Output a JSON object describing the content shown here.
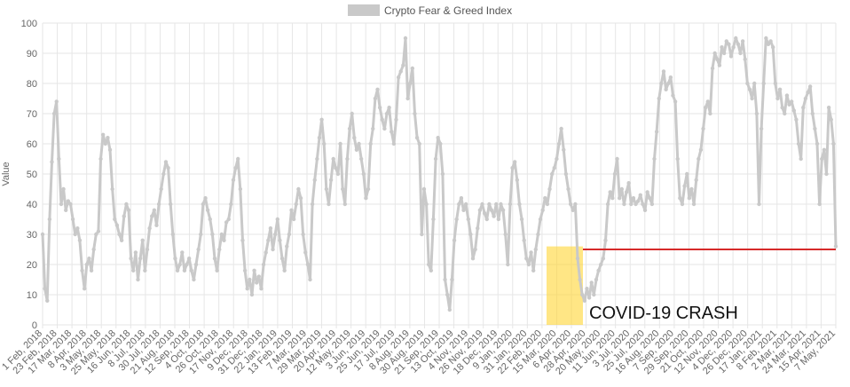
{
  "chart_data": {
    "type": "line",
    "legend": {
      "label": "Crypto Fear & Greed Index",
      "placement": "top-center"
    },
    "ylabel": "Value",
    "ylim": [
      0,
      100
    ],
    "yticks": [
      0,
      10,
      20,
      30,
      40,
      50,
      60,
      70,
      80,
      90,
      100
    ],
    "grid": true,
    "x_tick_labels": [
      "1 Feb, 2018",
      "23 Feb, 2018",
      "17 Mar, 2018",
      "8 Apr, 2018",
      "3 May, 2018",
      "25 May, 2018",
      "16 Jun, 2018",
      "8 Jul, 2018",
      "30 Jul, 2018",
      "21 Aug, 2018",
      "12 Sep, 2018",
      "4 Oct, 2018",
      "26 Oct, 2018",
      "17 Nov, 2018",
      "9 Dec, 2018",
      "31 Dec, 2018",
      "22 Jan, 2019",
      "13 Feb, 2019",
      "7 Mar, 2019",
      "29 Mar, 2019",
      "20 Apr, 2019",
      "12 May, 2019",
      "3 Jun, 2019",
      "25 Jun, 2019",
      "17 Jul, 2019",
      "8 Aug, 2019",
      "30 Aug, 2019",
      "21 Sep, 2019",
      "13 Oct, 2019",
      "4 Nov, 2019",
      "26 Nov, 2019",
      "18 Dec, 2019",
      "9 Jan, 2020",
      "31 Jan, 2020",
      "22 Feb, 2020",
      "15 Mar, 2020",
      "6 Apr, 2020",
      "28 Apr, 2020",
      "20 May, 2020",
      "11 Jun, 2020",
      "3 Jul, 2020",
      "25 Jul, 2020",
      "16 Aug, 2020",
      "7 Sep, 2020",
      "29 Sep, 2020",
      "21 Oct, 2020",
      "12 Nov, 2020",
      "4 Dec, 2020",
      "26 Dec, 2020",
      "17 Jan, 2021",
      "8 Feb, 2021",
      "2 Mar, 2021",
      "24 Mar, 2021",
      "15 Apr, 2021",
      "7 May, 2021"
    ],
    "series": [
      {
        "name": "Crypto Fear & Greed Index",
        "color": "#c9c9c9",
        "values": [
          30,
          12,
          8,
          35,
          54,
          70,
          74,
          55,
          40,
          45,
          38,
          41,
          40,
          35,
          30,
          32,
          28,
          18,
          12,
          20,
          22,
          18,
          25,
          30,
          31,
          55,
          63,
          60,
          62,
          58,
          45,
          35,
          33,
          30,
          28,
          36,
          40,
          38,
          22,
          18,
          24,
          15,
          22,
          28,
          18,
          25,
          32,
          36,
          38,
          33,
          40,
          45,
          50,
          54,
          52,
          40,
          30,
          22,
          18,
          20,
          24,
          18,
          20,
          22,
          18,
          15,
          20,
          25,
          30,
          40,
          42,
          38,
          35,
          30,
          22,
          18,
          25,
          30,
          28,
          34,
          35,
          40,
          48,
          52,
          55,
          45,
          28,
          18,
          12,
          15,
          10,
          18,
          14,
          16,
          12,
          20,
          24,
          28,
          32,
          25,
          30,
          35,
          28,
          22,
          18,
          26,
          30,
          38,
          35,
          40,
          45,
          42,
          30,
          24,
          20,
          15,
          40,
          48,
          55,
          62,
          68,
          60,
          45,
          40,
          48,
          55,
          52,
          50,
          60,
          45,
          40,
          55,
          65,
          70,
          62,
          58,
          60,
          55,
          50,
          42,
          45,
          60,
          65,
          75,
          78,
          72,
          68,
          65,
          70,
          72,
          64,
          60,
          68,
          82,
          84,
          86,
          95,
          75,
          80,
          85,
          70,
          62,
          60,
          30,
          45,
          40,
          20,
          18,
          35,
          55,
          62,
          60,
          50,
          15,
          10,
          5,
          15,
          28,
          35,
          40,
          42,
          38,
          40,
          35,
          30,
          22,
          25,
          32,
          38,
          40,
          37,
          35,
          40,
          38,
          36,
          40,
          35,
          40,
          38,
          30,
          20,
          40,
          52,
          54,
          48,
          40,
          35,
          28,
          22,
          20,
          24,
          18,
          25,
          30,
          35,
          38,
          42,
          40,
          45,
          50,
          52,
          55,
          60,
          65,
          58,
          50,
          45,
          40,
          38,
          40,
          22,
          15,
          10,
          8,
          12,
          9,
          14,
          10,
          15,
          18,
          20,
          22,
          28,
          40,
          44,
          42,
          50,
          55,
          42,
          45,
          40,
          44,
          47,
          40,
          42,
          40,
          41,
          43,
          40,
          38,
          44,
          42,
          40,
          55,
          64,
          75,
          80,
          84,
          78,
          80,
          82,
          76,
          74,
          55,
          42,
          40,
          46,
          50,
          42,
          45,
          40,
          48,
          55,
          58,
          65,
          72,
          74,
          70,
          85,
          90,
          88,
          86,
          92,
          90,
          94,
          93,
          89,
          92,
          95,
          93,
          90,
          94,
          88,
          80,
          78,
          75,
          80,
          70,
          40,
          65,
          80,
          95,
          93,
          94,
          92,
          80,
          75,
          78,
          72,
          70,
          76,
          73,
          74,
          71,
          68,
          60,
          55,
          72,
          75,
          77,
          79,
          70,
          65,
          60,
          40,
          55,
          58,
          50,
          72,
          68,
          60,
          26
        ]
      }
    ],
    "annotations": [
      {
        "text": "COVID-19 CRASH",
        "x_start": "6 Mar, 2020",
        "x_end": "27 Apr, 2020",
        "y_range": [
          0,
          26
        ],
        "highlight_color": "#ffd633"
      },
      {
        "type": "hline",
        "value": 25,
        "x_start": "27 Apr, 2020",
        "x_end": "13 May, 2021",
        "color": "#d62a2a"
      }
    ]
  }
}
